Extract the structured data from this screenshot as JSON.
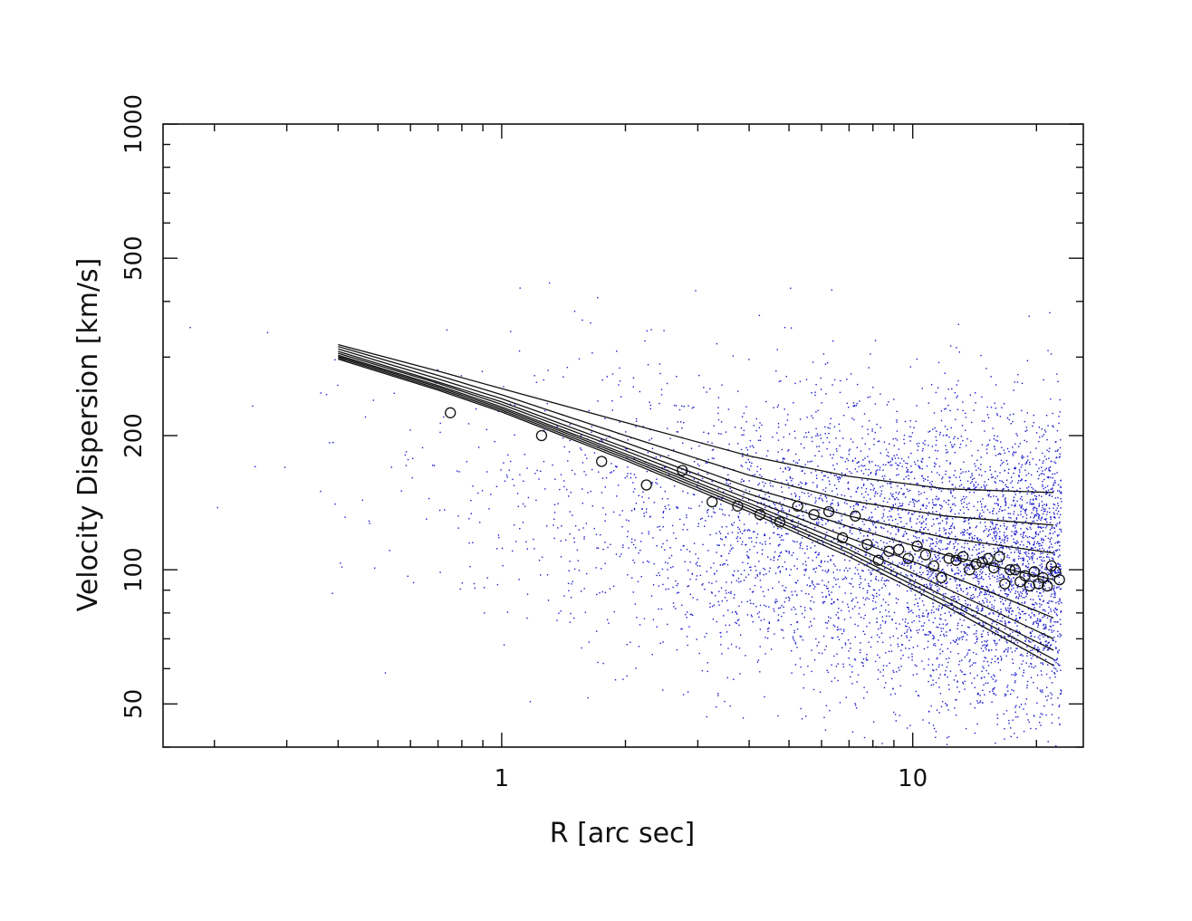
{
  "chart_data": {
    "type": "scatter",
    "title": "",
    "xlabel": "R [arc sec]",
    "ylabel": "Velocity Dispersion [km/s]",
    "xscale": "log",
    "yscale": "log",
    "xlim": [
      0.15,
      26
    ],
    "ylim": [
      40,
      1000
    ],
    "x_tick_labels": [
      {
        "value": 1,
        "label": "1"
      },
      {
        "value": 10,
        "label": "10"
      }
    ],
    "y_tick_labels": [
      {
        "value": 50,
        "label": "50"
      },
      {
        "value": 100,
        "label": "100"
      },
      {
        "value": 200,
        "label": "200"
      },
      {
        "value": 500,
        "label": "500"
      },
      {
        "value": 1000,
        "label": "1000"
      }
    ],
    "grid": false,
    "colors": {
      "frame": "#111111",
      "model_lines": "#111111",
      "points": "#1a1acc",
      "observed": "#111111"
    },
    "observed_points": {
      "marker": "open-circle",
      "x": [
        0.75,
        1.25,
        1.75,
        2.25,
        2.75,
        3.25,
        3.75,
        4.25,
        4.75,
        5.25,
        5.75,
        6.25,
        6.75,
        7.25,
        7.75,
        8.25,
        8.75,
        9.25,
        9.75,
        10.25,
        10.75,
        11.25,
        11.75,
        12.25,
        12.75,
        13.25,
        13.75,
        14.25,
        14.75,
        15.25,
        15.75,
        16.25,
        16.75,
        17.25,
        17.75,
        18.25,
        18.75,
        19.25,
        19.75,
        20.25,
        20.75,
        21.25,
        21.75,
        22.25,
        22.75
      ],
      "y": [
        225,
        200,
        175,
        155,
        167,
        142,
        139,
        133,
        128,
        139,
        133,
        135,
        118,
        132,
        114,
        105,
        110,
        111,
        106,
        113,
        108,
        102,
        96,
        106,
        105,
        107,
        100,
        103,
        104,
        106,
        101,
        107,
        93,
        100,
        100,
        94,
        97,
        92,
        99,
        93,
        96,
        92,
        102,
        99,
        95
      ]
    },
    "series": [
      {
        "x": [
          0.4,
          0.7,
          1,
          2,
          4,
          7,
          12,
          22
        ],
        "y": [
          320,
          279,
          255,
          214,
          180,
          162,
          152,
          149
        ]
      },
      {
        "x": [
          0.4,
          0.7,
          1,
          2,
          4,
          7,
          12,
          22
        ],
        "y": [
          317,
          273,
          247,
          200,
          163,
          143,
          132,
          126
        ]
      },
      {
        "x": [
          0.4,
          0.7,
          1,
          2,
          4,
          7,
          12,
          22
        ],
        "y": [
          313,
          268,
          242,
          193,
          153,
          132,
          118,
          109
        ]
      },
      {
        "x": [
          0.4,
          0.7,
          1,
          2,
          4,
          7,
          12,
          22
        ],
        "y": [
          309,
          264,
          238,
          188,
          148,
          125,
          108,
          95
        ]
      },
      {
        "x": [
          0.4,
          0.7,
          1,
          2,
          4,
          7,
          12,
          22
        ],
        "y": [
          306,
          262,
          235,
          185,
          144,
          118,
          98,
          78
        ]
      },
      {
        "x": [
          0.4,
          0.7,
          1,
          2,
          4,
          7,
          12,
          22
        ],
        "y": [
          303,
          259,
          232,
          182,
          141,
          114,
          91,
          70
        ]
      },
      {
        "x": [
          0.4,
          0.7,
          1,
          2,
          4,
          7,
          12,
          22
        ],
        "y": [
          301,
          257,
          230,
          180,
          139,
          111,
          87,
          66
        ]
      },
      {
        "x": [
          0.4,
          0.7,
          1,
          2,
          4,
          7,
          12,
          22
        ],
        "y": [
          299,
          255,
          228,
          178,
          137,
          109,
          85,
          63
        ]
      },
      {
        "x": [
          0.4,
          0.7,
          1,
          2,
          4,
          7,
          12,
          22
        ],
        "y": [
          297,
          253,
          226,
          176,
          135,
          107,
          83,
          61
        ]
      }
    ],
    "scatter_cloud": {
      "marker": "dot",
      "count": 5200,
      "x_range": [
        0.17,
        23
      ],
      "y_range": [
        40,
        620
      ],
      "trend": "density rises toward large R; centred near the observed points"
    }
  }
}
